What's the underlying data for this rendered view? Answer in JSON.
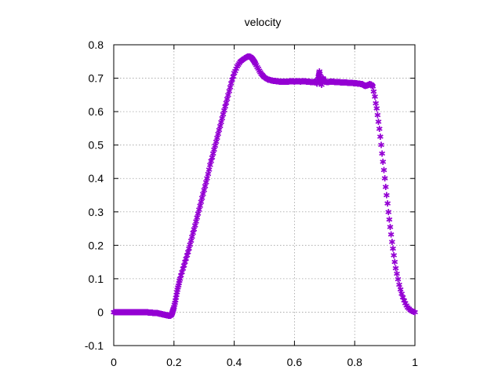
{
  "chart_data": {
    "type": "scatter",
    "title": "velocity",
    "xlabel": "",
    "ylabel": "",
    "xlim": [
      0,
      1
    ],
    "ylim": [
      -0.1,
      0.8
    ],
    "x_ticks": [
      "0",
      "0.2",
      "0.4",
      "0.6",
      "0.8",
      "1"
    ],
    "y_ticks": [
      "0.8",
      "0.7",
      "0.6",
      "0.5",
      "0.4",
      "0.3",
      "0.2",
      "0.1",
      "0",
      "-0.1"
    ],
    "grid": true,
    "marker": "*",
    "color": "#9400d3",
    "series": [
      {
        "values": [
          [
            0.0,
            0.0
          ],
          [
            0.005,
            0.0
          ],
          [
            0.01,
            0.0
          ],
          [
            0.015,
            0.0
          ],
          [
            0.02,
            0.0
          ],
          [
            0.025,
            0.0
          ],
          [
            0.03,
            0.0
          ],
          [
            0.035,
            0.0
          ],
          [
            0.04,
            0.0
          ],
          [
            0.045,
            0.0
          ],
          [
            0.05,
            0.0
          ],
          [
            0.055,
            0.0
          ],
          [
            0.06,
            0.0
          ],
          [
            0.065,
            0.0
          ],
          [
            0.07,
            0.0
          ],
          [
            0.075,
            0.0
          ],
          [
            0.08,
            0.0
          ],
          [
            0.085,
            0.0
          ],
          [
            0.09,
            0.0
          ],
          [
            0.095,
            0.0
          ],
          [
            0.1,
            0.0
          ],
          [
            0.105,
            0.0
          ],
          [
            0.11,
            0.0
          ],
          [
            0.115,
            -0.001
          ],
          [
            0.12,
            -0.001
          ],
          [
            0.125,
            -0.001
          ],
          [
            0.13,
            -0.002
          ],
          [
            0.135,
            -0.002
          ],
          [
            0.14,
            -0.003
          ],
          [
            0.145,
            -0.003
          ],
          [
            0.15,
            -0.004
          ],
          [
            0.155,
            -0.005
          ],
          [
            0.16,
            -0.006
          ],
          [
            0.165,
            -0.007
          ],
          [
            0.17,
            -0.008
          ],
          [
            0.175,
            -0.009
          ],
          [
            0.18,
            -0.01
          ],
          [
            0.185,
            -0.011
          ],
          [
            0.19,
            -0.01
          ],
          [
            0.193,
            -0.005
          ],
          [
            0.196,
            0.003
          ],
          [
            0.2,
            0.015
          ],
          [
            0.205,
            0.035
          ],
          [
            0.21,
            0.06
          ],
          [
            0.215,
            0.08
          ],
          [
            0.22,
            0.1
          ],
          [
            0.23,
            0.13
          ],
          [
            0.24,
            0.16
          ],
          [
            0.25,
            0.19
          ],
          [
            0.26,
            0.225
          ],
          [
            0.27,
            0.26
          ],
          [
            0.28,
            0.295
          ],
          [
            0.29,
            0.33
          ],
          [
            0.3,
            0.365
          ],
          [
            0.31,
            0.4
          ],
          [
            0.32,
            0.44
          ],
          [
            0.33,
            0.475
          ],
          [
            0.34,
            0.51
          ],
          [
            0.35,
            0.545
          ],
          [
            0.36,
            0.58
          ],
          [
            0.37,
            0.615
          ],
          [
            0.38,
            0.65
          ],
          [
            0.39,
            0.685
          ],
          [
            0.4,
            0.715
          ],
          [
            0.41,
            0.735
          ],
          [
            0.42,
            0.75
          ],
          [
            0.43,
            0.757
          ],
          [
            0.44,
            0.762
          ],
          [
            0.445,
            0.765
          ],
          [
            0.45,
            0.765
          ],
          [
            0.455,
            0.763
          ],
          [
            0.46,
            0.759
          ],
          [
            0.465,
            0.752
          ],
          [
            0.47,
            0.744
          ],
          [
            0.48,
            0.728
          ],
          [
            0.49,
            0.713
          ],
          [
            0.5,
            0.703
          ],
          [
            0.51,
            0.697
          ],
          [
            0.52,
            0.694
          ],
          [
            0.53,
            0.692
          ],
          [
            0.54,
            0.691
          ],
          [
            0.55,
            0.69
          ],
          [
            0.56,
            0.69
          ],
          [
            0.57,
            0.69
          ],
          [
            0.58,
            0.69
          ],
          [
            0.59,
            0.691
          ],
          [
            0.6,
            0.69
          ],
          [
            0.61,
            0.691
          ],
          [
            0.62,
            0.69
          ],
          [
            0.63,
            0.691
          ],
          [
            0.64,
            0.69
          ],
          [
            0.65,
            0.689
          ],
          [
            0.66,
            0.688
          ],
          [
            0.67,
            0.69
          ],
          [
            0.675,
            0.684
          ],
          [
            0.68,
            0.705
          ],
          [
            0.683,
            0.72
          ],
          [
            0.686,
            0.7
          ],
          [
            0.69,
            0.68
          ],
          [
            0.695,
            0.7
          ],
          [
            0.7,
            0.69
          ],
          [
            0.71,
            0.688
          ],
          [
            0.72,
            0.69
          ],
          [
            0.73,
            0.689
          ],
          [
            0.74,
            0.688
          ],
          [
            0.75,
            0.688
          ],
          [
            0.76,
            0.687
          ],
          [
            0.77,
            0.687
          ],
          [
            0.78,
            0.686
          ],
          [
            0.79,
            0.686
          ],
          [
            0.8,
            0.685
          ],
          [
            0.81,
            0.684
          ],
          [
            0.82,
            0.683
          ],
          [
            0.825,
            0.682
          ],
          [
            0.83,
            0.679
          ],
          [
            0.835,
            0.677
          ],
          [
            0.84,
            0.678
          ],
          [
            0.845,
            0.68
          ],
          [
            0.85,
            0.682
          ],
          [
            0.855,
            0.681
          ],
          [
            0.86,
            0.676
          ],
          [
            0.863,
            0.66
          ],
          [
            0.867,
            0.645
          ],
          [
            0.87,
            0.625
          ],
          [
            0.873,
            0.61
          ],
          [
            0.876,
            0.59
          ],
          [
            0.879,
            0.57
          ],
          [
            0.882,
            0.548
          ],
          [
            0.885,
            0.525
          ],
          [
            0.888,
            0.5
          ],
          [
            0.891,
            0.475
          ],
          [
            0.894,
            0.45
          ],
          [
            0.897,
            0.425
          ],
          [
            0.9,
            0.4
          ],
          [
            0.903,
            0.375
          ],
          [
            0.906,
            0.35
          ],
          [
            0.909,
            0.325
          ],
          [
            0.912,
            0.3
          ],
          [
            0.915,
            0.277
          ],
          [
            0.918,
            0.255
          ],
          [
            0.921,
            0.233
          ],
          [
            0.924,
            0.21
          ],
          [
            0.927,
            0.19
          ],
          [
            0.93,
            0.17
          ],
          [
            0.933,
            0.15
          ],
          [
            0.936,
            0.132
          ],
          [
            0.94,
            0.115
          ],
          [
            0.944,
            0.098
          ],
          [
            0.948,
            0.082
          ],
          [
            0.952,
            0.068
          ],
          [
            0.956,
            0.055
          ],
          [
            0.96,
            0.044
          ],
          [
            0.964,
            0.035
          ],
          [
            0.968,
            0.027
          ],
          [
            0.972,
            0.02
          ],
          [
            0.976,
            0.014
          ],
          [
            0.98,
            0.01
          ],
          [
            0.985,
            0.006
          ],
          [
            0.99,
            0.003
          ],
          [
            0.995,
            0.001
          ],
          [
            1.0,
            0.0
          ]
        ]
      }
    ]
  }
}
